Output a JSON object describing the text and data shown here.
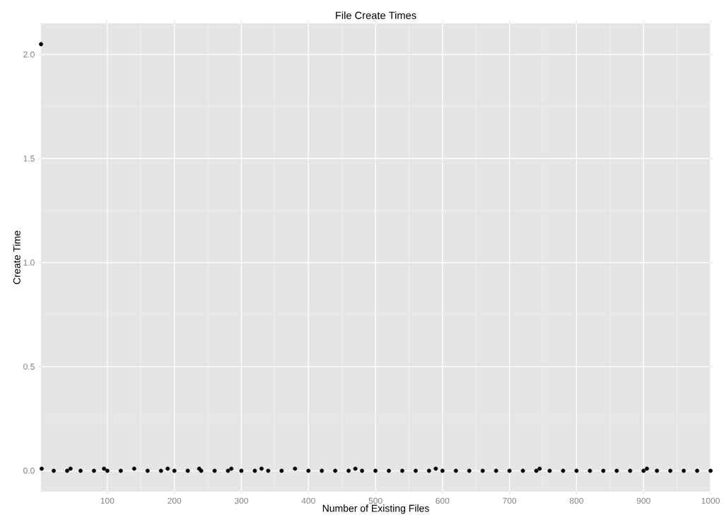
{
  "chart_data": {
    "type": "scatter",
    "title": "File Create Times",
    "xlabel": "Number of Existing Files",
    "ylabel": "Create Time",
    "x": [
      1,
      2,
      20,
      40,
      45,
      60,
      80,
      95,
      100,
      120,
      140,
      160,
      180,
      190,
      200,
      220,
      237,
      240,
      260,
      280,
      285,
      300,
      320,
      330,
      340,
      360,
      380,
      400,
      420,
      440,
      460,
      470,
      480,
      500,
      520,
      540,
      560,
      580,
      590,
      600,
      620,
      640,
      660,
      680,
      700,
      720,
      740,
      745,
      760,
      780,
      800,
      820,
      840,
      860,
      880,
      900,
      905,
      920,
      940,
      960,
      980,
      1000
    ],
    "values": [
      2.05,
      0.01,
      0,
      0,
      0.01,
      0,
      0,
      0.01,
      0,
      0,
      0.01,
      0,
      0,
      0.01,
      0,
      0,
      0.01,
      0,
      0,
      0,
      0.01,
      0,
      0,
      0.01,
      0,
      0,
      0.01,
      0,
      0,
      0,
      0,
      0.01,
      0,
      0,
      0,
      0,
      0,
      0,
      0.01,
      0,
      0,
      0,
      0,
      0,
      0,
      0,
      0,
      0.01,
      0,
      0,
      0,
      0,
      0,
      0,
      0,
      0,
      0.01,
      0,
      0,
      0,
      0,
      0
    ],
    "color": "#000000",
    "xlim": [
      1,
      1000
    ],
    "ylim": [
      -0.1,
      2.15
    ],
    "xticks": [
      100,
      200,
      300,
      400,
      500,
      600,
      700,
      800,
      900,
      1000
    ],
    "yticks": [
      {
        "value": 0,
        "label": "0.0"
      },
      {
        "value": 0.5,
        "label": "0.5"
      },
      {
        "value": 1,
        "label": "1.0"
      },
      {
        "value": 1.5,
        "label": "1.5"
      },
      {
        "value": 2,
        "label": "2.0"
      }
    ],
    "grid": true
  }
}
